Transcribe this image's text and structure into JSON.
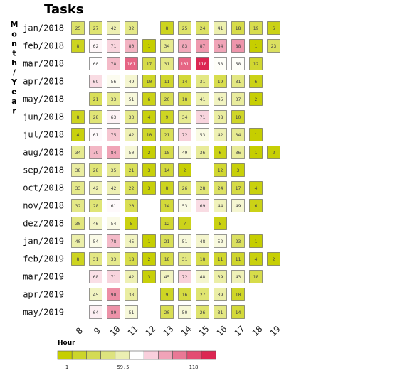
{
  "chart_data": {
    "type": "heatmap",
    "title": "Tasks",
    "xlabel": "",
    "ylabel": "Month/Year",
    "x_categories": [
      8,
      9,
      10,
      11,
      12,
      13,
      14,
      15,
      16,
      17,
      18,
      19
    ],
    "y_categories": [
      "jan/2018",
      "feb/2018",
      "mar/2018",
      "apr/2018",
      "may/2018",
      "jun/2018",
      "jul/2018",
      "aug/2018",
      "sep/2018",
      "oct/2018",
      "nov/2018",
      "dez/2018",
      "jan/2019",
      "feb/2019",
      "mar/2019",
      "apr/2019",
      "may/2019"
    ],
    "values": [
      [
        25,
        27,
        42,
        32,
        null,
        8,
        25,
        24,
        41,
        18,
        19,
        6
      ],
      [
        8,
        62,
        71,
        80,
        1,
        34,
        83,
        87,
        84,
        88,
        1,
        23
      ],
      [
        null,
        60,
        78,
        101,
        17,
        31,
        101,
        118,
        58,
        58,
        12,
        null
      ],
      [
        null,
        69,
        56,
        49,
        10,
        11,
        14,
        31,
        19,
        31,
        6,
        null
      ],
      [
        null,
        21,
        33,
        51,
        6,
        20,
        18,
        41,
        45,
        37,
        2,
        null
      ],
      [
        8,
        28,
        63,
        33,
        4,
        9,
        34,
        71,
        38,
        10,
        null,
        null
      ],
      [
        4,
        61,
        75,
        42,
        10,
        21,
        72,
        53,
        42,
        34,
        1,
        null
      ],
      [
        34,
        79,
        84,
        50,
        2,
        18,
        49,
        36,
        6,
        36,
        1,
        2
      ],
      [
        38,
        28,
        35,
        21,
        3,
        14,
        2,
        null,
        12,
        3,
        null,
        null
      ],
      [
        33,
        42,
        42,
        22,
        3,
        8,
        26,
        28,
        24,
        17,
        4,
        null
      ],
      [
        32,
        28,
        61,
        20,
        null,
        14,
        53,
        69,
        44,
        49,
        6,
        null
      ],
      [
        30,
        46,
        54,
        5,
        null,
        12,
        7,
        null,
        5,
        null,
        null,
        null
      ],
      [
        40,
        54,
        78,
        45,
        1,
        21,
        51,
        48,
        52,
        23,
        1,
        null
      ],
      [
        8,
        31,
        33,
        18,
        2,
        18,
        31,
        18,
        11,
        11,
        4,
        2
      ],
      [
        null,
        68,
        71,
        42,
        3,
        45,
        72,
        48,
        39,
        43,
        18,
        null
      ],
      [
        null,
        45,
        90,
        38,
        null,
        9,
        16,
        27,
        39,
        10,
        null,
        null
      ],
      [
        null,
        64,
        89,
        51,
        null,
        20,
        50,
        26,
        31,
        14,
        null,
        null
      ]
    ],
    "legend": {
      "title": "Hour",
      "min": 1,
      "mid": 59.5,
      "max": 118,
      "min_label": "1",
      "mid_label": "59.5",
      "max_label": "118",
      "placement": "bottom-left",
      "colors": [
        "#c6ce00",
        "#ccd52a",
        "#d4db55",
        "#dde37e",
        "#ebefb2",
        "#ffffff",
        "#f9cfdc",
        "#f0a3b8",
        "#e97895",
        "#e34d72",
        "#dc2652"
      ]
    },
    "grid": false
  }
}
